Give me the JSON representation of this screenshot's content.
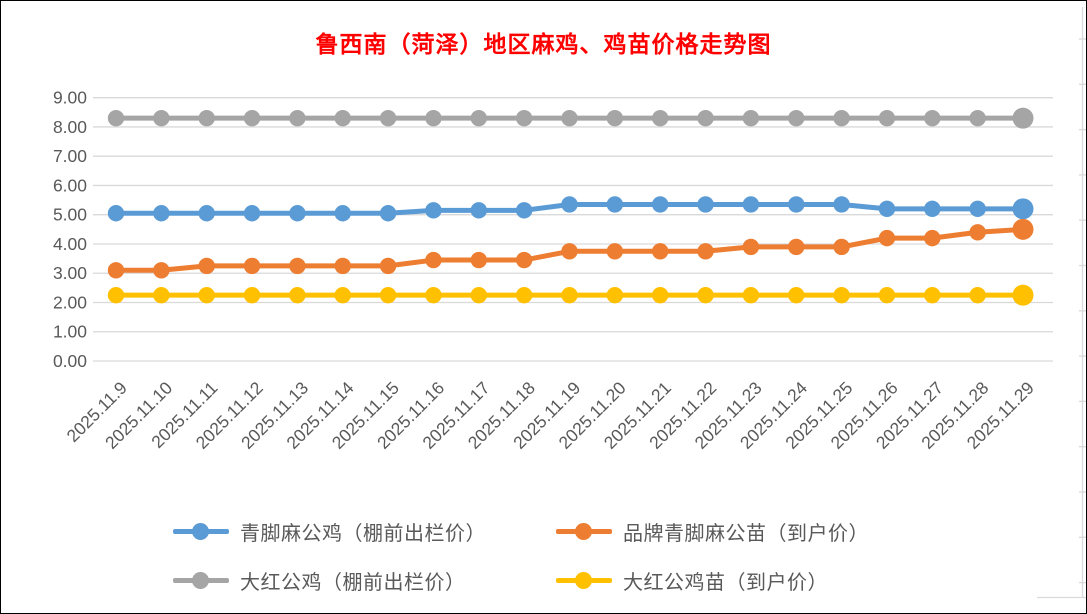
{
  "chart": {
    "title": "鲁西南（菏泽）地区麻鸡、鸡苗价格走势图",
    "title_color": "#FF0000",
    "axis_text_color": "#595959",
    "gridline_color": "#D9D9D9",
    "background_color": "#FFFFFF"
  },
  "chart_data": {
    "type": "line",
    "title": "鲁西南（菏泽）地区麻鸡、鸡苗价格走势图",
    "x": [
      "2025.11.9",
      "2025.11.10",
      "2025.11.11",
      "2025.11.12",
      "2025.11.13",
      "2025.11.14",
      "2025.11.15",
      "2025.11.16",
      "2025.11.17",
      "2025.11.18",
      "2025.11.19",
      "2025.11.20",
      "2025.11.21",
      "2025.11.22",
      "2025.11.23",
      "2025.11.24",
      "2025.11.25",
      "2025.11.26",
      "2025.11.27",
      "2025.11.28",
      "2025.11.29"
    ],
    "series": [
      {
        "name": "青脚麻公鸡（棚前出栏价）",
        "color": "#5B9BD5",
        "values": [
          5.05,
          5.05,
          5.05,
          5.05,
          5.05,
          5.05,
          5.05,
          5.15,
          5.15,
          5.15,
          5.35,
          5.35,
          5.35,
          5.35,
          5.35,
          5.35,
          5.35,
          5.2,
          5.2,
          5.2,
          5.2
        ]
      },
      {
        "name": "品牌青脚麻公苗（到户价）",
        "color": "#ED7D31",
        "values": [
          3.1,
          3.1,
          3.25,
          3.25,
          3.25,
          3.25,
          3.25,
          3.45,
          3.45,
          3.45,
          3.75,
          3.75,
          3.75,
          3.75,
          3.9,
          3.9,
          3.9,
          4.2,
          4.2,
          4.4,
          4.5
        ]
      },
      {
        "name": "大红公鸡（棚前出栏价）",
        "color": "#A5A5A5",
        "values": [
          8.3,
          8.3,
          8.3,
          8.3,
          8.3,
          8.3,
          8.3,
          8.3,
          8.3,
          8.3,
          8.3,
          8.3,
          8.3,
          8.3,
          8.3,
          8.3,
          8.3,
          8.3,
          8.3,
          8.3,
          8.3
        ]
      },
      {
        "name": "大红公鸡苗（到户价）",
        "color": "#FFC000",
        "values": [
          2.25,
          2.25,
          2.25,
          2.25,
          2.25,
          2.25,
          2.25,
          2.25,
          2.25,
          2.25,
          2.25,
          2.25,
          2.25,
          2.25,
          2.25,
          2.25,
          2.25,
          2.25,
          2.25,
          2.25,
          2.25
        ]
      }
    ],
    "xlabel": "",
    "ylabel": "",
    "ylim": [
      0,
      9
    ],
    "ytick_step": 1,
    "yticks": [
      "0.00",
      "1.00",
      "2.00",
      "3.00",
      "4.00",
      "5.00",
      "6.00",
      "7.00",
      "8.00",
      "9.00"
    ],
    "grid": "horizontal",
    "legend_position": "bottom",
    "x_label_rotation": -45,
    "marker": "circle",
    "last_point_emphasized": true
  }
}
